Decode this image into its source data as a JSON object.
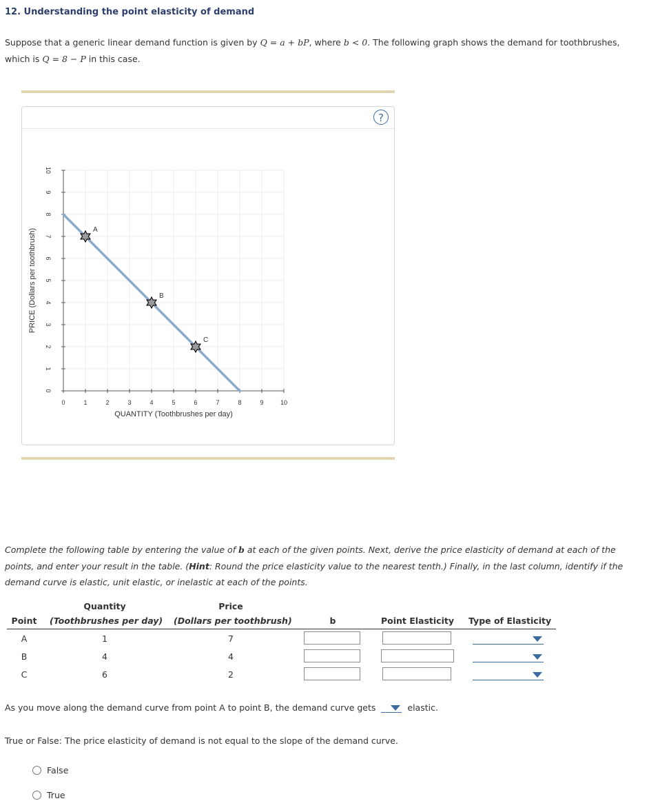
{
  "question": {
    "title": "12. Understanding the point elasticity of demand",
    "intro_part1": "Suppose that a generic linear demand function is given by ",
    "intro_math1": "Q = a + bP",
    "intro_part2": ", where ",
    "intro_math2": "b < 0",
    "intro_part3": ". The following graph shows the demand for toothbrushes, which is ",
    "intro_math3": "Q = 8 − P",
    "intro_part4": " in this case."
  },
  "graph": {
    "help_label": "?",
    "chart_data": {
      "type": "line",
      "xlabel": "QUANTITY (Toothbrushes per day)",
      "ylabel": "PRICE (Dollars per toothbrush)",
      "xlim": [
        0,
        10
      ],
      "ylim": [
        0,
        10
      ],
      "xticks": [
        "0",
        "1",
        "2",
        "3",
        "4",
        "5",
        "6",
        "7",
        "8",
        "9",
        "10"
      ],
      "yticks": [
        "0",
        "1",
        "2",
        "3",
        "4",
        "5",
        "6",
        "7",
        "8",
        "9",
        "10"
      ],
      "grid": true,
      "line_color": "#8aa9cf",
      "series": [
        {
          "x": [
            0,
            8
          ],
          "y": [
            8,
            0
          ]
        }
      ],
      "points": [
        {
          "label": "A",
          "x": 1,
          "y": 7
        },
        {
          "label": "B",
          "x": 4,
          "y": 4
        },
        {
          "label": "C",
          "x": 6,
          "y": 2
        }
      ]
    }
  },
  "instructions": {
    "part1": "Complete the following table by entering the value of ",
    "math_b": "b",
    "part2": " at each of the given points. Next, derive the price elasticity of demand at each of the points, and enter your result in the table. (",
    "hint_label": "Hint",
    "part3": ": Round the price elasticity value to the nearest tenth.) Finally, in the last column, identify if the demand curve is elastic, unit elastic, or inelastic at each of the points."
  },
  "table": {
    "headers": {
      "point": "Point",
      "quantity_line1": "Quantity",
      "quantity_line2": "(Toothbrushes per day)",
      "price_line1": "Price",
      "price_line2": "(Dollars per toothbrush)",
      "b": "b",
      "elasticity": "Point Elasticity",
      "type": "Type of Elasticity"
    },
    "rows": [
      {
        "point": "A",
        "quantity": "1",
        "price": "7",
        "b_value": "",
        "elasticity_value": "",
        "type_value": ""
      },
      {
        "point": "B",
        "quantity": "4",
        "price": "4",
        "b_value": "",
        "elasticity_value": "",
        "type_value": ""
      },
      {
        "point": "C",
        "quantity": "6",
        "price": "2",
        "b_value": "",
        "elasticity_value": "",
        "type_value": ""
      }
    ]
  },
  "movement": {
    "text_before": "As you move along the demand curve from point A to point B, the demand curve gets",
    "selected": "",
    "text_after": "elastic."
  },
  "true_false": {
    "prompt": "True or False: The price elasticity of demand is not equal to the slope of the demand curve.",
    "options": [
      "False",
      "True"
    ]
  }
}
